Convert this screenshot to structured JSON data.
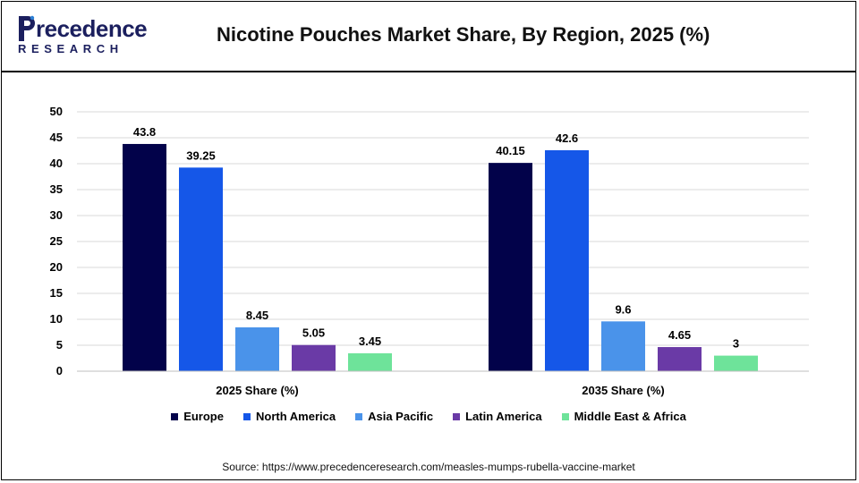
{
  "logo": {
    "word": "recedence",
    "sub": "RESEARCH"
  },
  "chart_data": {
    "type": "bar",
    "title": "Nicotine Pouches Market Share, By Region, 2025 (%)",
    "categories": [
      "2025 Share (%)",
      "2035 Share (%)"
    ],
    "series": [
      {
        "name": "Europe",
        "values": [
          43.8,
          40.15
        ],
        "labels": [
          "43.8",
          "40.15"
        ],
        "color": "#02024a"
      },
      {
        "name": "North America",
        "values": [
          39.25,
          42.6
        ],
        "labels": [
          "39.25",
          "42.6"
        ],
        "color": "#1557e8"
      },
      {
        "name": "Asia Pacific",
        "values": [
          8.45,
          9.6
        ],
        "labels": [
          "8.45",
          "9.6"
        ],
        "color": "#4a93ea"
      },
      {
        "name": "Latin America",
        "values": [
          5.05,
          4.65
        ],
        "labels": [
          "5.05",
          "4.65"
        ],
        "color": "#6a3aa6"
      },
      {
        "name": "Middle East & Africa",
        "values": [
          3.45,
          3
        ],
        "labels": [
          "3.45",
          "3"
        ],
        "color": "#6ee39a"
      }
    ],
    "ylim": [
      0,
      50
    ],
    "yticks": [
      "0",
      "5",
      "10",
      "15",
      "20",
      "25",
      "30",
      "35",
      "40",
      "45",
      "50"
    ],
    "grid": true,
    "legend": "bottom"
  },
  "source": "Source: https://www.precedenceresearch.com/measles-mumps-rubella-vaccine-market"
}
